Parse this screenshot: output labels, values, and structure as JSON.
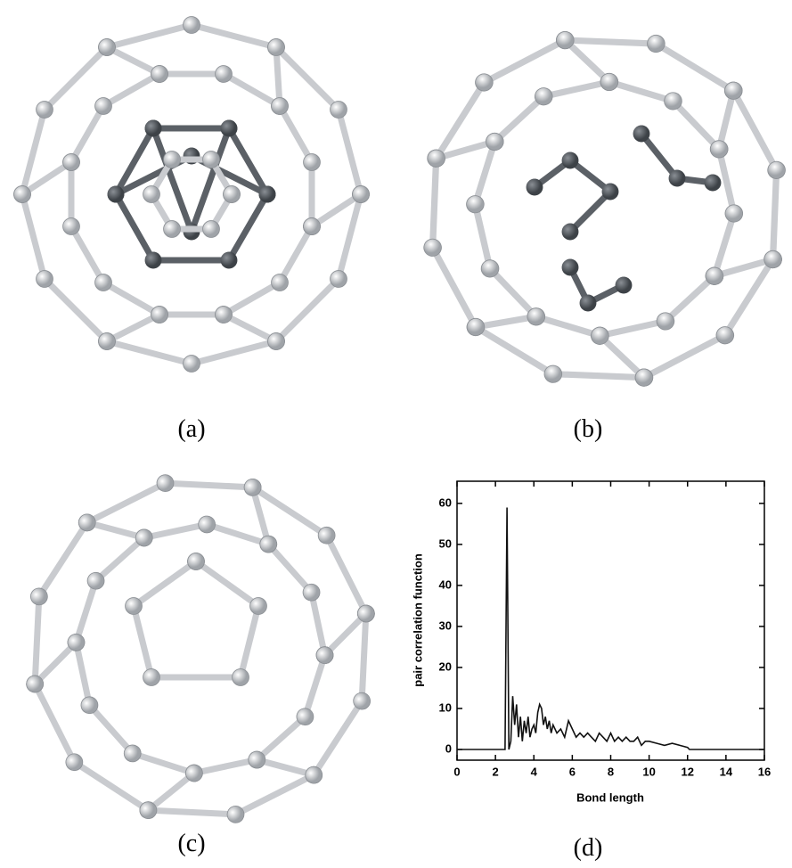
{
  "panels": [
    {
      "label": "(a)"
    },
    {
      "label": "(b)"
    },
    {
      "label": "(c)"
    },
    {
      "label": "(d)"
    }
  ],
  "chart_data": {
    "type": "line",
    "x_label": "Bond length",
    "y_label": "pair correlation function",
    "x": [
      0,
      2.45,
      2.5,
      2.6,
      2.7,
      2.8,
      2.9,
      3.0,
      3.1,
      3.2,
      3.3,
      3.4,
      3.5,
      3.6,
      3.7,
      3.8,
      3.9,
      4.0,
      4.1,
      4.2,
      4.3,
      4.4,
      4.5,
      4.6,
      4.7,
      4.8,
      4.9,
      5.0,
      5.2,
      5.4,
      5.6,
      5.8,
      6.0,
      6.2,
      6.4,
      6.6,
      6.8,
      7.0,
      7.2,
      7.4,
      7.6,
      7.8,
      8.0,
      8.2,
      8.4,
      8.6,
      8.8,
      9.0,
      9.2,
      9.4,
      9.6,
      9.8,
      10.0,
      10.4,
      10.8,
      11.2,
      11.6,
      12.0,
      12.1,
      16
    ],
    "values": [
      0,
      0,
      0,
      59,
      0,
      2,
      13,
      6,
      11,
      3,
      8,
      2,
      7,
      4,
      8,
      3,
      5,
      6,
      4,
      9,
      11,
      10,
      6,
      8,
      5,
      7,
      4,
      6,
      4,
      5,
      3,
      7,
      5,
      3,
      4,
      3,
      4,
      3,
      2,
      4,
      3,
      2,
      4,
      2,
      3,
      2,
      3,
      2,
      2,
      3,
      1,
      2,
      2,
      1.5,
      1,
      1.5,
      1,
      0.5,
      0,
      0
    ],
    "color": "#111111",
    "xlim": [
      0,
      16
    ],
    "xticks": [
      0,
      2,
      4,
      6,
      8,
      10,
      12,
      14,
      16
    ],
    "ylim": [
      -2.6,
      65.4
    ],
    "yticks": [
      0,
      10,
      20,
      30,
      40,
      50,
      60
    ]
  }
}
